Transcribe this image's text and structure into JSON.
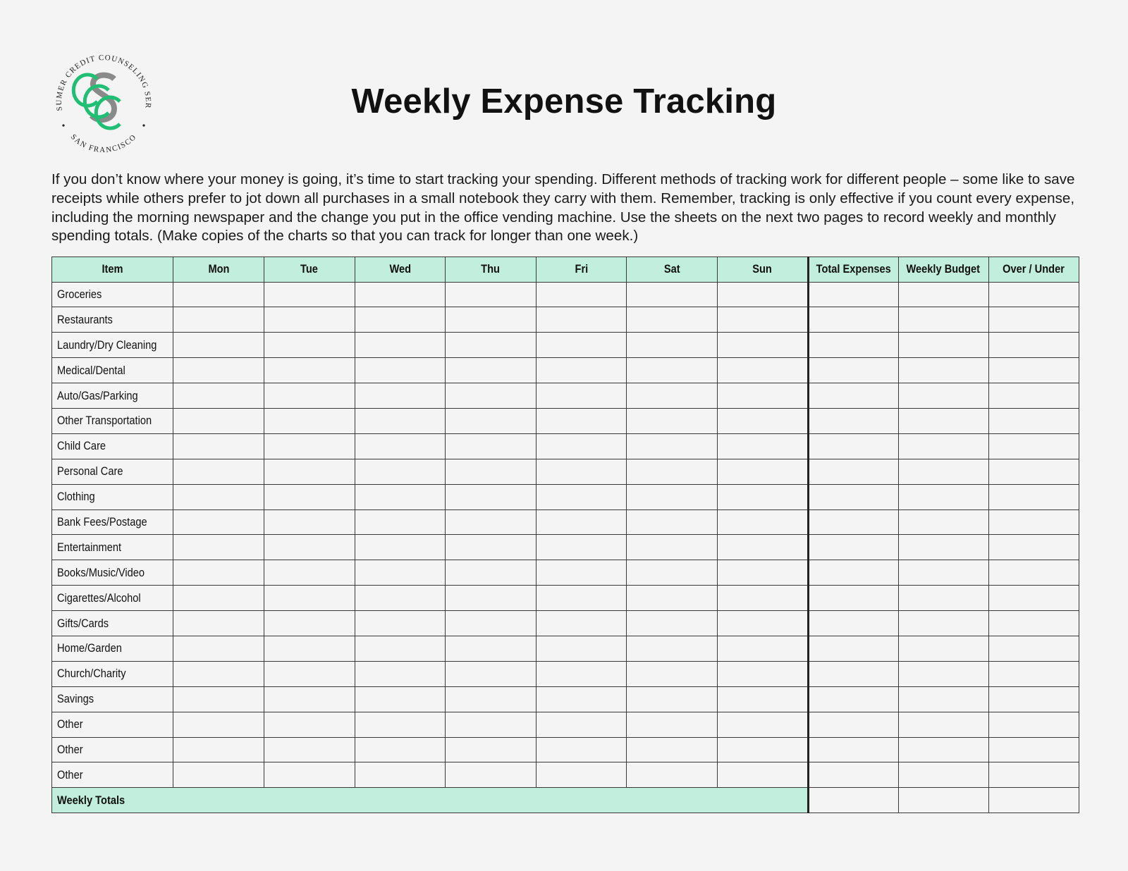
{
  "logo": {
    "name": "Consumer Credit Counseling Service",
    "ring_top": "CONSUMER CREDIT COUNSELING SERVICE",
    "ring_bottom": "SAN FRANCISCO",
    "monogram": "CCC / S",
    "colors": {
      "green": "#1fbf74",
      "gray": "#8a8a8a"
    }
  },
  "title": "Weekly Expense Tracking",
  "intro": "If you don’t know where your money is going, it’s time to start tracking your spending. Different methods of tracking work for different people – some like to save receipts while others prefer to jot down all purchases in a small notebook they carry with them. Remember, tracking is only effective if you count every expense, including the morning newspaper and the change you put in the office vending machine. Use the sheets on the next two pages to record weekly and monthly spending totals. (Make copies of the charts so that you can track for longer than one week.)",
  "table": {
    "headers": [
      "Item",
      "Mon",
      "Tue",
      "Wed",
      "Thu",
      "Fri",
      "Sat",
      "Sun",
      "Total Expenses",
      "Weekly Budget",
      "Over / Under"
    ],
    "items": [
      "Groceries",
      "Restaurants",
      "Laundry/Dry Cleaning",
      "Medical/Dental",
      "Auto/Gas/Parking",
      "Other Transportation",
      "Child Care",
      "Personal Care",
      "Clothing",
      "Bank Fees/Postage",
      "Entertainment",
      "Books/Music/Video",
      "Cigarettes/Alcohol",
      "Gifts/Cards",
      "Home/Garden",
      "Church/Charity",
      "Savings",
      "Other",
      "Other",
      "Other"
    ],
    "totals_label": "Weekly Totals",
    "header_color": "#c2eedd"
  }
}
